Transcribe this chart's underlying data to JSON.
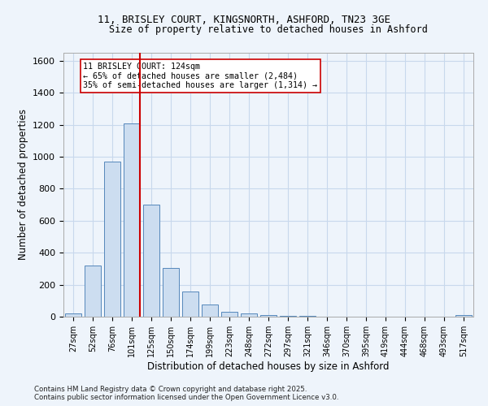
{
  "title_line1": "11, BRISLEY COURT, KINGSNORTH, ASHFORD, TN23 3GE",
  "title_line2": "Size of property relative to detached houses in Ashford",
  "xlabel": "Distribution of detached houses by size in Ashford",
  "ylabel": "Number of detached properties",
  "bar_labels": [
    "27sqm",
    "52sqm",
    "76sqm",
    "101sqm",
    "125sqm",
    "150sqm",
    "174sqm",
    "199sqm",
    "223sqm",
    "248sqm",
    "272sqm",
    "297sqm",
    "321sqm",
    "346sqm",
    "370sqm",
    "395sqm",
    "419sqm",
    "444sqm",
    "468sqm",
    "493sqm",
    "517sqm"
  ],
  "bar_values": [
    22,
    320,
    970,
    1210,
    700,
    305,
    158,
    75,
    28,
    18,
    10,
    5,
    3,
    2,
    2,
    1,
    1,
    0,
    0,
    0,
    12
  ],
  "bar_color": "#ccddf0",
  "bar_edge_color": "#5588bb",
  "bar_edge_width": 0.7,
  "vline_color": "#cc0000",
  "annotation_text": "11 BRISLEY COURT: 124sqm\n← 65% of detached houses are smaller (2,484)\n35% of semi-detached houses are larger (1,314) →",
  "annotation_box_edge_color": "#cc0000",
  "annotation_box_face_color": "white",
  "ylim": [
    0,
    1650
  ],
  "yticks": [
    0,
    200,
    400,
    600,
    800,
    1000,
    1200,
    1400,
    1600
  ],
  "grid_color": "#c8d8ec",
  "background_color": "#eef4fb",
  "footer_line1": "Contains HM Land Registry data © Crown copyright and database right 2025.",
  "footer_line2": "Contains public sector information licensed under the Open Government Licence v3.0."
}
